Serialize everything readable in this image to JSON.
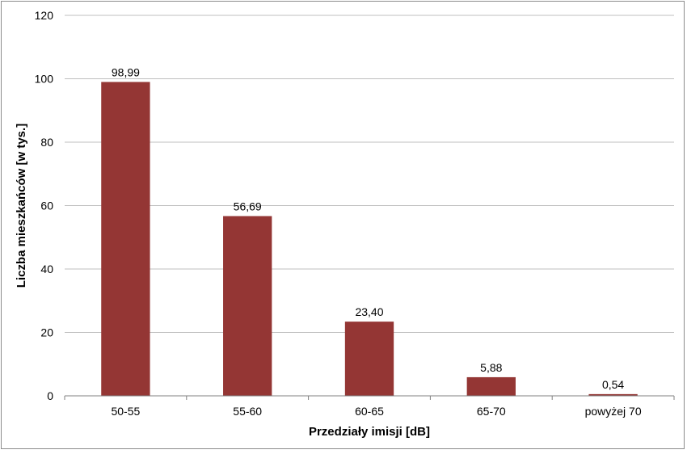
{
  "chart_data": {
    "type": "bar",
    "categories": [
      "50-55",
      "55-60",
      "60-65",
      "65-70",
      "powyżej 70"
    ],
    "values": [
      98.99,
      56.69,
      23.4,
      5.88,
      0.54
    ],
    "value_labels": [
      "98,99",
      "56,69",
      "23,40",
      "5,88",
      "0,54"
    ],
    "title": "",
    "xlabel": "Przedziały imisji [dB]",
    "ylabel": "Liczba mieszkańców [w tys.]",
    "ylim": [
      0,
      120
    ],
    "yticks": [
      0,
      20,
      40,
      60,
      80,
      100,
      120
    ],
    "grid": true,
    "legend": "none",
    "colors": {
      "bar": "#943634",
      "grid": "#bfbfbf",
      "axis": "#808080"
    }
  }
}
